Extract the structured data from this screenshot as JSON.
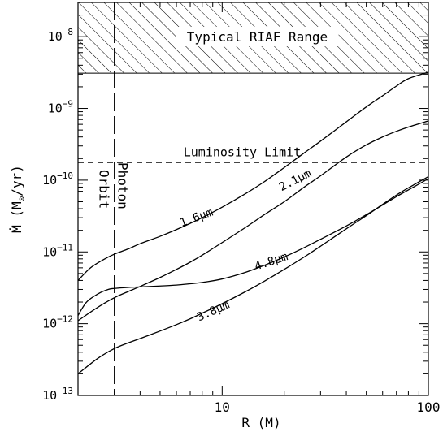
{
  "chart_data": {
    "type": "line",
    "xlabel": "R (M)",
    "ylabel_main": "Ṁ (M",
    "ylabel_sub": "⊙",
    "ylabel_end": "/yr)",
    "x_scale": "log",
    "y_scale": "log",
    "xlim": [
      2,
      100
    ],
    "ylim": [
      1e-13,
      3e-08
    ],
    "x_ticks": [
      {
        "value": 10,
        "label": "10"
      },
      {
        "value": 100,
        "label": "100"
      }
    ],
    "y_ticks": [
      {
        "value": 1e-13,
        "base": "10",
        "exp": "−13"
      },
      {
        "value": 1e-12,
        "base": "10",
        "exp": "−12"
      },
      {
        "value": 1e-11,
        "base": "10",
        "exp": "−11"
      },
      {
        "value": 1e-10,
        "base": "10",
        "exp": "−10"
      },
      {
        "value": 1e-09,
        "base": "10",
        "exp": "−9"
      },
      {
        "value": 1e-08,
        "base": "10",
        "exp": "−8"
      }
    ],
    "grid": false,
    "riaf_region": {
      "y_from": 3.1e-09,
      "label": "Typical RIAF Range"
    },
    "luminosity_limit": {
      "y": 1.75e-10,
      "label": "Luminosity Limit"
    },
    "photon_orbit": {
      "x": 3,
      "label_line1": "Photon",
      "label_line2": "Orbit"
    },
    "series": [
      {
        "name": "1.6μm",
        "x": [
          2,
          2.3,
          2.7,
          3,
          3.5,
          4,
          5,
          6,
          7,
          8,
          10,
          13,
          16,
          20,
          25,
          30,
          40,
          50,
          60,
          70,
          80,
          100
        ],
        "y": [
          4e-12,
          6e-12,
          8e-12,
          9.3e-12,
          1.1e-11,
          1.3e-11,
          1.65e-11,
          2.05e-11,
          2.5e-11,
          3e-11,
          4.2e-11,
          6.5e-11,
          9.5e-11,
          1.5e-10,
          2.4e-10,
          3.5e-10,
          6.5e-10,
          1.05e-09,
          1.5e-09,
          2.05e-09,
          2.6e-09,
          3.2e-09
        ],
        "label_at": {
          "x": 7.6,
          "y": 2.7e-11,
          "angle": -20
        }
      },
      {
        "name": "2.1μm",
        "x": [
          2,
          2.5,
          3,
          3.5,
          4,
          5,
          6,
          7,
          8,
          10,
          13,
          16,
          20,
          25,
          30,
          40,
          50,
          60,
          70,
          80,
          100
        ],
        "y": [
          1.1e-12,
          1.7e-12,
          2.3e-12,
          2.8e-12,
          3.3e-12,
          4.4e-12,
          5.7e-12,
          7.2e-12,
          9e-12,
          1.35e-11,
          2.2e-11,
          3.3e-11,
          5e-11,
          8e-11,
          1.15e-10,
          2.1e-10,
          3.1e-10,
          4e-10,
          4.8e-10,
          5.5e-10,
          6.7e-10
        ],
        "label_at": {
          "x": 23,
          "y": 9e-11,
          "angle": -27
        }
      },
      {
        "name": "4.8μm",
        "x": [
          2,
          2.2,
          2.5,
          2.8,
          3,
          3.5,
          4,
          5,
          6,
          7,
          8,
          10,
          13,
          16,
          20,
          25,
          30,
          40,
          50,
          60,
          70,
          80,
          100
        ],
        "y": [
          1.3e-12,
          2e-12,
          2.6e-12,
          3e-12,
          3.1e-12,
          3.2e-12,
          3.25e-12,
          3.35e-12,
          3.45e-12,
          3.6e-12,
          3.75e-12,
          4.2e-12,
          5.2e-12,
          6.5e-12,
          8.5e-12,
          1.15e-11,
          1.5e-11,
          2.3e-11,
          3.3e-11,
          4.5e-11,
          5.9e-11,
          7.3e-11,
          1.05e-10
        ],
        "label_at": {
          "x": 17.5,
          "y": 6.6e-12,
          "angle": -18
        }
      },
      {
        "name": "3.8μm",
        "x": [
          2,
          2.5,
          3,
          3.5,
          4,
          5,
          6,
          7,
          8,
          10,
          13,
          16,
          20,
          25,
          30,
          40,
          50,
          60,
          70,
          80,
          100
        ],
        "y": [
          2e-13,
          3.3e-13,
          4.5e-13,
          5.4e-13,
          6.2e-13,
          7.9e-13,
          9.7e-13,
          1.17e-12,
          1.4e-12,
          1.9e-12,
          2.8e-12,
          3.9e-12,
          5.7e-12,
          8.5e-12,
          1.2e-11,
          2.1e-11,
          3.2e-11,
          4.6e-11,
          6.2e-11,
          7.8e-11,
          1.12e-10
        ],
        "label_at": {
          "x": 9.2,
          "y": 1.35e-12,
          "angle": -24
        }
      }
    ]
  }
}
